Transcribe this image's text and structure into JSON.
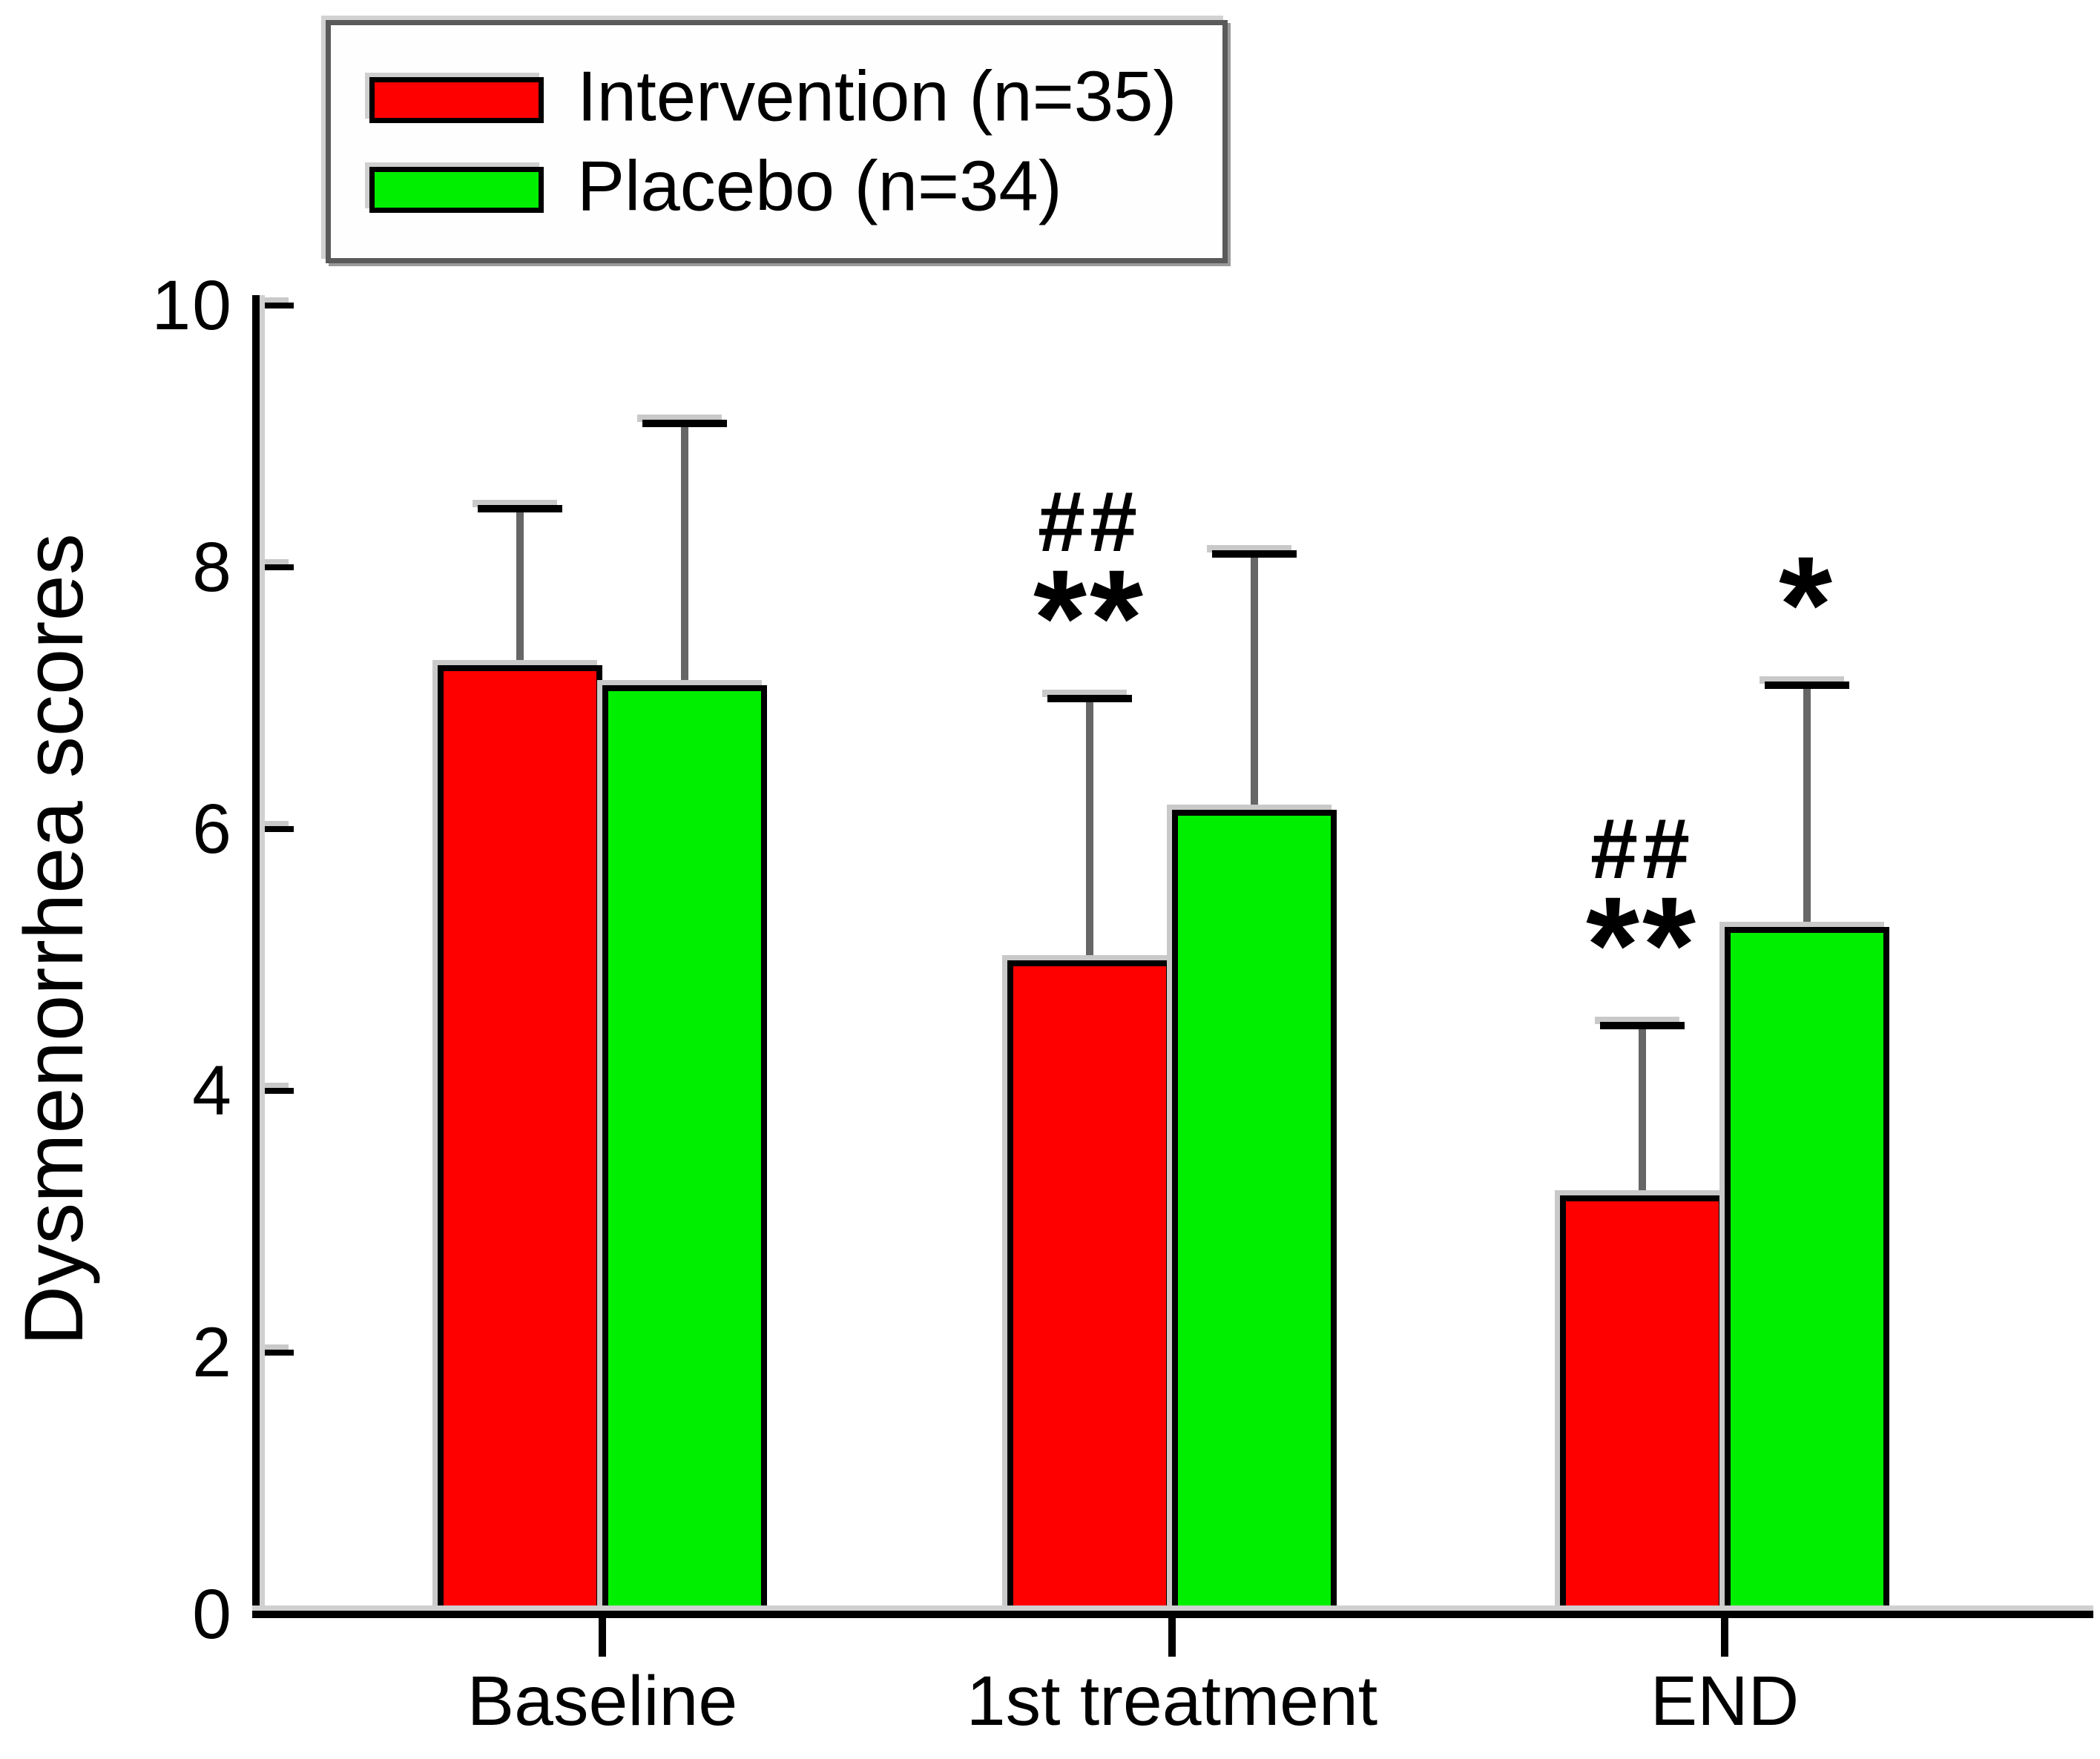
{
  "figure": {
    "background": "#ffffff",
    "text_color": "#000000",
    "axis_color": "#000000"
  },
  "legend": {
    "entries": [
      {
        "label": "Intervention (n=35)",
        "color": "#ff0000"
      },
      {
        "label": "Placebo (n=34)",
        "color": "#00ee00"
      }
    ]
  },
  "chart_data": {
    "type": "bar",
    "title": "",
    "xlabel": "",
    "ylabel": "Dysmenorrhea scores",
    "ylim": [
      0,
      10
    ],
    "yticks": [
      0,
      2,
      4,
      6,
      8,
      10
    ],
    "grid": false,
    "legend_position": "top-left",
    "categories": [
      "Baseline",
      "1st treatment",
      "END"
    ],
    "series": [
      {
        "name": "Intervention (n=35)",
        "color": "#ff0000",
        "values": [
          7.25,
          5.0,
          3.2
        ],
        "error_up": [
          1.2,
          2.0,
          1.3
        ],
        "annotations": [
          [],
          [
            "##",
            "**"
          ],
          [
            "##",
            "**"
          ]
        ]
      },
      {
        "name": "Placebo (n=34)",
        "color": "#00ee00",
        "values": [
          7.1,
          6.15,
          5.25
        ],
        "error_up": [
          2.0,
          1.95,
          1.85
        ],
        "annotations": [
          [],
          [],
          [
            "*"
          ]
        ]
      }
    ]
  }
}
